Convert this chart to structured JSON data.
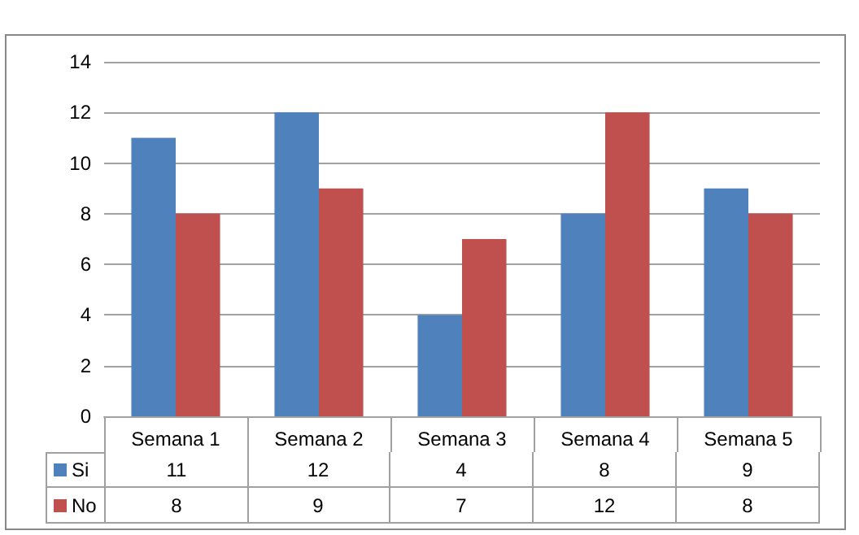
{
  "chart_data": {
    "type": "bar",
    "categories": [
      "Semana 1",
      "Semana 2",
      "Semana 3",
      "Semana 4",
      "Semana 5"
    ],
    "series": [
      {
        "name": "Si",
        "color": "#4f81bd",
        "values": [
          11,
          12,
          4,
          8,
          9
        ]
      },
      {
        "name": "No",
        "color": "#c0504d",
        "values": [
          8,
          9,
          7,
          12,
          8
        ]
      }
    ],
    "ylim": [
      0,
      14
    ],
    "yticks": [
      0,
      2,
      4,
      6,
      8,
      10,
      12,
      14
    ],
    "grid": "y",
    "legend": "bottom left",
    "data_labels": true
  }
}
